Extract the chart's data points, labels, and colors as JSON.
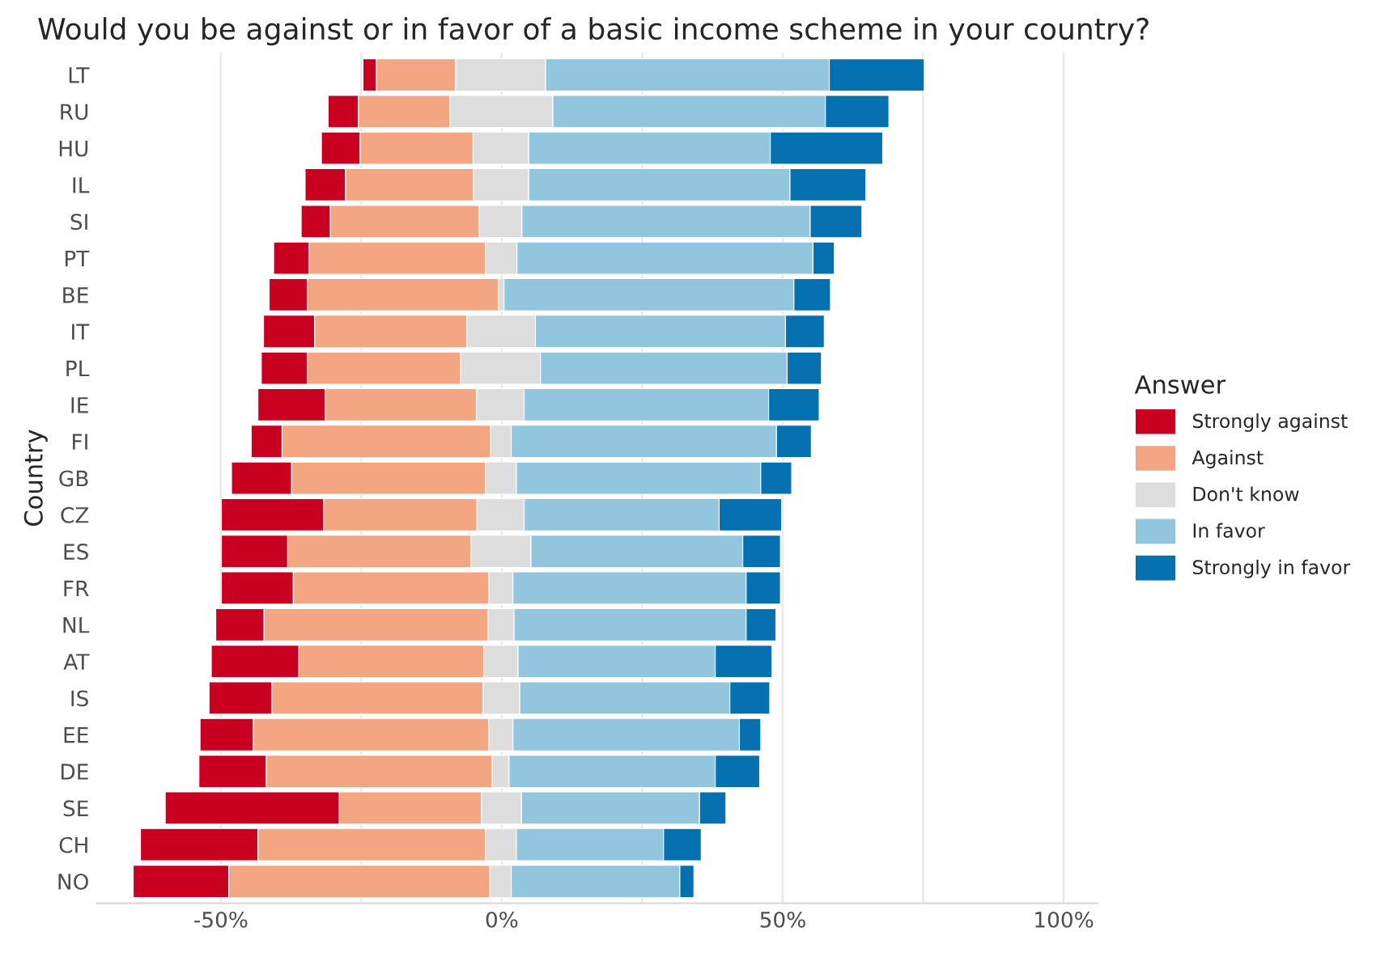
{
  "chart_data": {
    "type": "bar",
    "orientation": "horizontal",
    "title": "Would you be against or in favor of a basic income scheme in your country?",
    "ylabel": "Country",
    "legend_title": "Answer",
    "legend": "right",
    "grid": "x",
    "categories": [
      "LT",
      "RU",
      "HU",
      "IL",
      "SI",
      "PT",
      "BE",
      "IT",
      "PL",
      "IE",
      "FI",
      "GB",
      "CZ",
      "ES",
      "FR",
      "NL",
      "AT",
      "IS",
      "EE",
      "DE",
      "SE",
      "CH",
      "NO"
    ],
    "xlim": [
      -72,
      106
    ],
    "xticks": [
      {
        "value": -50,
        "label": "-50%"
      },
      {
        "value": -25,
        "label": null
      },
      {
        "value": 0,
        "label": "0%"
      },
      {
        "value": 25,
        "label": null
      },
      {
        "value": 50,
        "label": "50%"
      },
      {
        "value": 75,
        "label": null
      },
      {
        "value": 100,
        "label": "100%"
      }
    ],
    "series": [
      {
        "name": "Strongly against",
        "color": "#ca0020",
        "values": [
          2.4,
          5.4,
          6.9,
          7.2,
          5.2,
          6.3,
          6.8,
          9.1,
          8.2,
          12.0,
          5.5,
          10.7,
          18.2,
          11.8,
          12.8,
          8.6,
          15.6,
          11.2,
          9.5,
          12.0,
          31.0,
          20.9,
          17.0
        ],
        "base": [
          -24.7,
          -30.9,
          -32.1,
          -35.0,
          -35.7,
          -40.6,
          -41.4,
          -42.4,
          -42.8,
          -43.4,
          -44.6,
          -48.1,
          -49.9,
          -49.9,
          -49.9,
          -50.9,
          -51.7,
          -52.1,
          -53.7,
          -53.9,
          -59.9,
          -64.3,
          -65.6
        ]
      },
      {
        "name": "Against",
        "color": "#f4a582",
        "values": [
          14.1,
          16.3,
          20.1,
          22.8,
          26.5,
          31.4,
          34.0,
          27.1,
          27.3,
          26.9,
          37.1,
          34.5,
          27.3,
          32.6,
          34.8,
          39.9,
          32.9,
          37.6,
          41.9,
          40.2,
          25.3,
          40.5,
          46.5
        ],
        "base": [
          -22.3,
          -25.5,
          -25.2,
          -27.8,
          -30.5,
          -34.3,
          -34.6,
          -33.3,
          -34.6,
          -31.4,
          -39.1,
          -37.4,
          -31.7,
          -38.1,
          -37.1,
          -42.3,
          -36.1,
          -40.9,
          -44.2,
          -41.9,
          -28.9,
          -43.4,
          -48.6
        ]
      },
      {
        "name": "Don't know",
        "color": "#dddddd",
        "values": [
          16.0,
          18.3,
          9.9,
          9.8,
          7.6,
          5.6,
          1.0,
          12.2,
          14.2,
          8.5,
          3.7,
          5.5,
          8.4,
          10.7,
          4.3,
          4.6,
          6.1,
          6.5,
          4.3,
          3.0,
          7.1,
          5.5,
          3.8
        ],
        "base": [
          -8.2,
          -9.2,
          -5.1,
          -5.0,
          -4.0,
          -2.9,
          -0.6,
          -6.2,
          -7.3,
          -4.5,
          -2.0,
          -2.9,
          -4.4,
          -5.5,
          -2.3,
          -2.4,
          -3.2,
          -3.3,
          -2.3,
          -1.7,
          -3.6,
          -2.9,
          -2.1
        ]
      },
      {
        "name": "In favor",
        "color": "#92c5de",
        "values": [
          50.5,
          48.5,
          43.0,
          46.5,
          51.3,
          52.7,
          51.6,
          44.5,
          43.9,
          43.5,
          47.2,
          43.5,
          34.7,
          37.7,
          41.5,
          41.3,
          35.1,
          37.4,
          40.3,
          36.7,
          31.7,
          26.2,
          30.0
        ],
        "base": [
          7.8,
          9.1,
          4.8,
          4.8,
          3.6,
          2.7,
          0.4,
          6.0,
          6.9,
          4.0,
          1.7,
          2.6,
          4.0,
          5.2,
          2.0,
          2.2,
          2.9,
          3.2,
          2.0,
          1.3,
          3.5,
          2.6,
          1.7
        ]
      },
      {
        "name": "Strongly in favor",
        "color": "#0571b0",
        "values": [
          16.9,
          11.3,
          20.0,
          13.5,
          9.2,
          3.8,
          6.5,
          6.9,
          6.1,
          9.0,
          6.2,
          5.5,
          11.1,
          6.7,
          6.1,
          5.3,
          10.1,
          7.1,
          3.8,
          7.9,
          4.7,
          6.7,
          2.5
        ],
        "base": [
          58.3,
          57.6,
          47.8,
          51.3,
          54.9,
          55.4,
          52.0,
          50.5,
          50.8,
          47.5,
          48.9,
          46.1,
          38.7,
          42.9,
          43.5,
          43.5,
          38.0,
          40.6,
          42.3,
          38.0,
          35.2,
          28.8,
          31.7
        ]
      }
    ]
  }
}
